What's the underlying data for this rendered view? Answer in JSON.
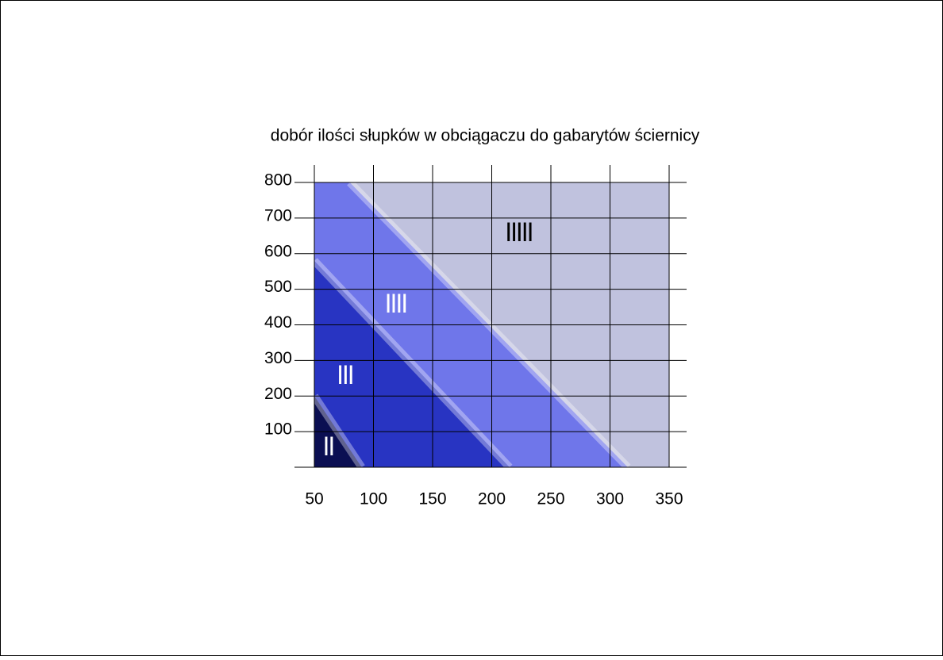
{
  "chart_data": {
    "type": "region",
    "title": "dobór ilości słupków w obciągaczu do gabarytów ściernicy",
    "xlim": [
      50,
      350
    ],
    "xticks": [
      50,
      100,
      150,
      200,
      250,
      300,
      350
    ],
    "ylim": [
      0,
      800
    ],
    "yticks": [
      100,
      200,
      300,
      400,
      500,
      600,
      700,
      800
    ],
    "grid": true,
    "background_color": "#c0c2de",
    "regions": [
      {
        "name": "IIIII",
        "color": "#c0c2de",
        "label_color": "#000000"
      },
      {
        "name": "IIII",
        "color": "#6f76ea",
        "label_color": "#ffffff",
        "boundary": {
          "x": [
            80,
            315
          ],
          "y": [
            800,
            0
          ]
        }
      },
      {
        "name": "III",
        "color": "#2834c2",
        "label_color": "#ffffff",
        "boundary": {
          "x": [
            50,
            215
          ],
          "y": [
            580,
            0
          ]
        }
      },
      {
        "name": "II",
        "color": "#0b0f52",
        "label_color": "#ffffff",
        "boundary": {
          "x": [
            50,
            90
          ],
          "y": [
            200,
            0
          ]
        }
      }
    ]
  }
}
